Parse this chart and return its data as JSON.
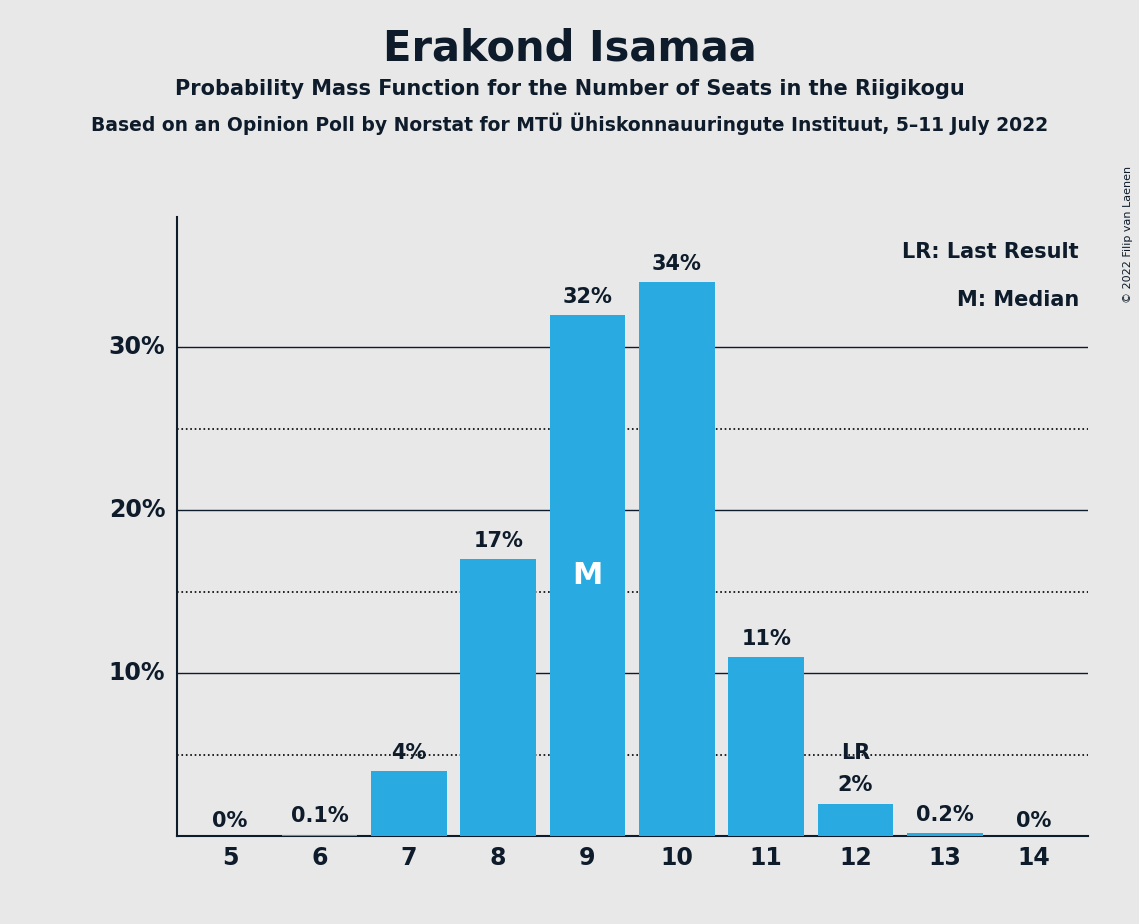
{
  "title": "Erakond Isamaa",
  "subtitle1": "Probability Mass Function for the Number of Seats in the Riigikogu",
  "subtitle2": "Based on an Opinion Poll by Norstat for MTU Ühiskonnauuringute Instituut, 5–11 July 2022",
  "subtitle2_display": "Based on an Opinion Poll by Norstat for MTÜ Ühiskonnauuringute Instituut, 5–11 July 2022",
  "copyright": "© 2022 Filip van Laenen",
  "seats": [
    5,
    6,
    7,
    8,
    9,
    10,
    11,
    12,
    13,
    14
  ],
  "probabilities": [
    0.0,
    0.1,
    4.0,
    17.0,
    32.0,
    34.0,
    11.0,
    2.0,
    0.2,
    0.0
  ],
  "labels": [
    "0%",
    "0.1%",
    "4%",
    "17%",
    "32%",
    "34%",
    "11%",
    "2%",
    "0.2%",
    "0%"
  ],
  "bar_color": "#29ABE2",
  "background_color": "#E8E8E8",
  "text_color": "#0d1b2a",
  "median_seat": 9,
  "lr_seat": 12,
  "median_label": "M",
  "lr_label": "LR",
  "legend_lr": "LR: Last Result",
  "legend_m": "M: Median",
  "solid_lines": [
    10.0,
    20.0,
    30.0
  ],
  "dotted_lines": [
    5.0,
    15.0,
    25.0
  ],
  "ylim": [
    0,
    38
  ]
}
